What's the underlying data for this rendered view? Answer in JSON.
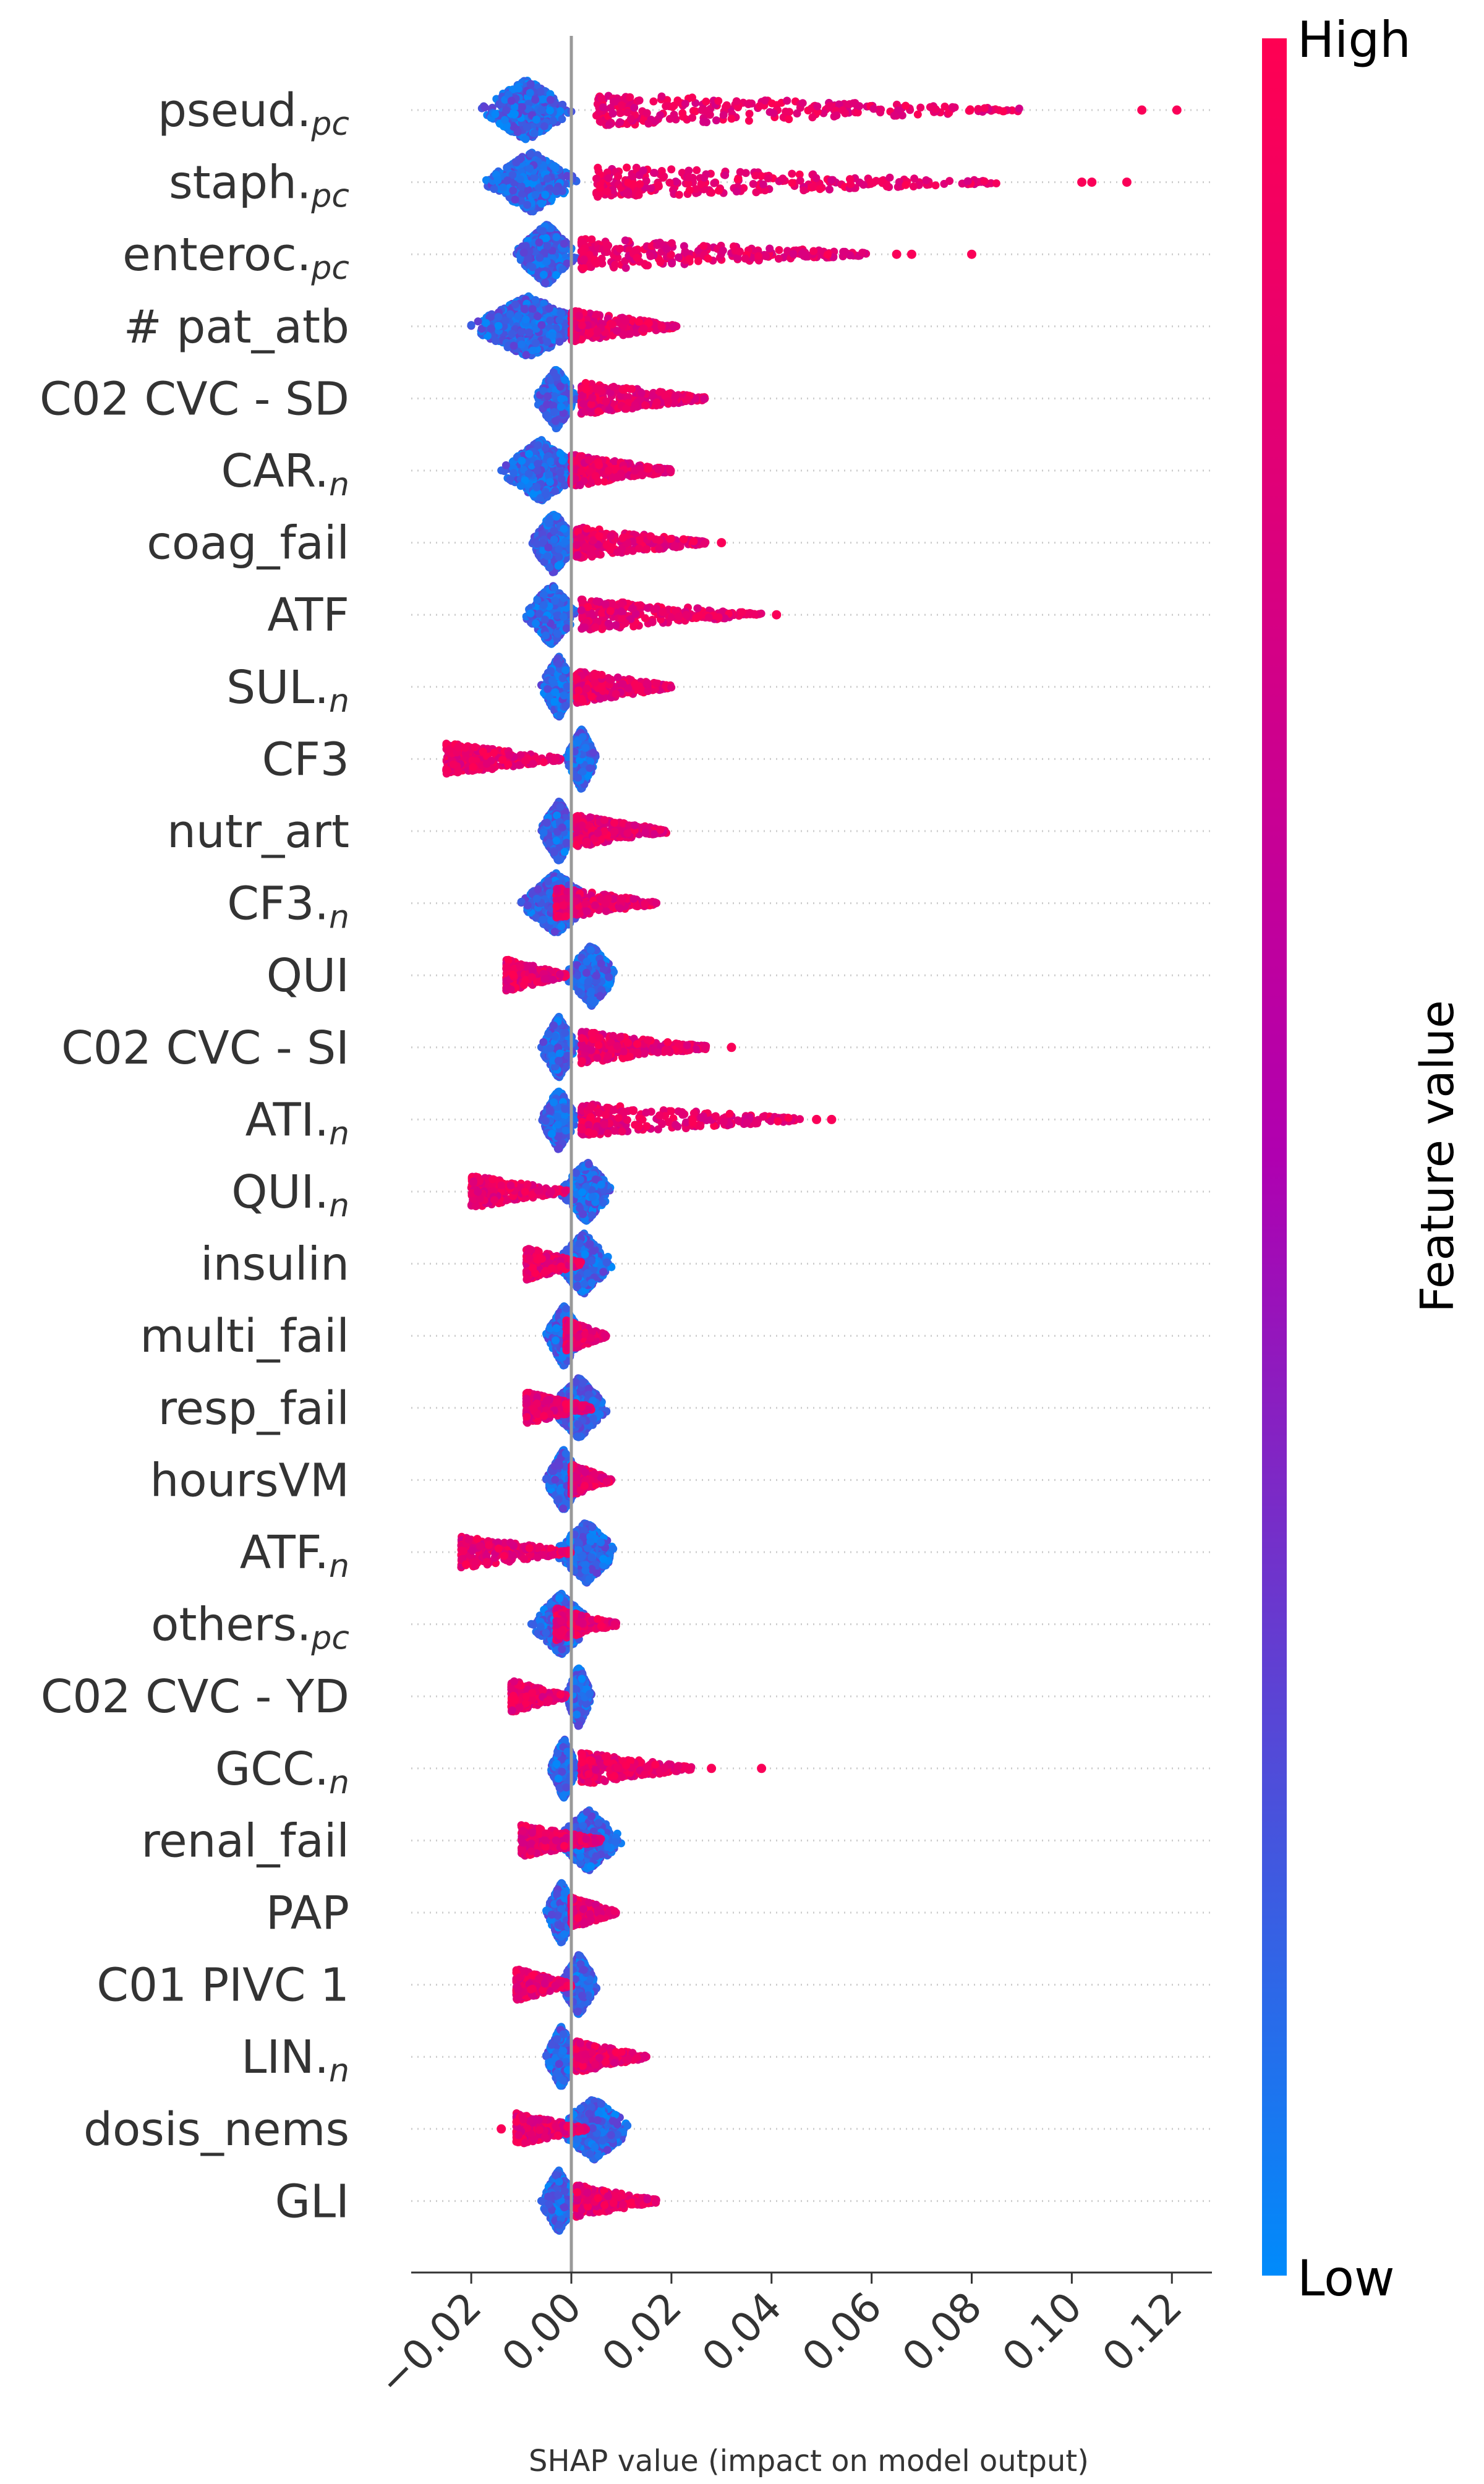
{
  "chart_data": {
    "type": "scatter",
    "subtype": "shap-beeswarm",
    "xlabel": "SHAP value (impact on model output)",
    "xlim": [
      -0.032,
      0.128
    ],
    "xticks": [
      -0.02,
      0.0,
      0.02,
      0.04,
      0.06,
      0.08,
      0.1,
      0.12
    ],
    "xtick_labels": [
      "−0.02",
      "0.00",
      "0.02",
      "0.04",
      "0.06",
      "0.08",
      "0.10",
      "0.12"
    ],
    "zero_line": 0.0,
    "grid": false,
    "colorbar": {
      "title": "Feature value",
      "high_label": "High",
      "low_label": "Low",
      "high_color": "#ff0052",
      "mid_color": "#b000b0",
      "low_color": "#008bfb"
    },
    "features": [
      {
        "name": "pseud.",
        "sub": "pc",
        "min": -0.018,
        "max": 0.121,
        "low_min": -0.018,
        "low_max": 0.0,
        "high_start": 0.005,
        "high_dense_end": 0.09,
        "width": 0.006,
        "outliers": [
          0.114,
          0.121
        ]
      },
      {
        "name": "staph.",
        "sub": "pc",
        "min": -0.017,
        "max": 0.111,
        "low_min": -0.017,
        "low_max": 0.001,
        "high_start": 0.005,
        "high_dense_end": 0.085,
        "width": 0.006,
        "outliers": [
          0.102,
          0.104,
          0.111
        ]
      },
      {
        "name": "enteroc.",
        "sub": "pc",
        "min": -0.011,
        "max": 0.08,
        "low_min": -0.011,
        "low_max": 0.001,
        "high_start": 0.002,
        "high_dense_end": 0.06,
        "width": 0.004,
        "outliers": [
          0.065,
          0.068,
          0.08
        ]
      },
      {
        "name": "# pat_atb",
        "sub": "",
        "min": -0.02,
        "max": 0.021,
        "low_min": -0.02,
        "low_max": 0.003,
        "high_start": 0.0,
        "high_dense_end": 0.021,
        "width": 0.007,
        "outliers": []
      },
      {
        "name": "C02 CVC - SD",
        "sub": "",
        "min": -0.007,
        "max": 0.027,
        "low_min": -0.007,
        "low_max": 0.001,
        "high_start": 0.002,
        "high_dense_end": 0.027,
        "width": 0.004,
        "outliers": []
      },
      {
        "name": "CAR.",
        "sub": "n",
        "min": -0.014,
        "max": 0.02,
        "low_min": -0.014,
        "low_max": 0.002,
        "high_start": 0.0,
        "high_dense_end": 0.02,
        "width": 0.006,
        "outliers": []
      },
      {
        "name": "coag_fail",
        "sub": "",
        "min": -0.008,
        "max": 0.03,
        "low_min": -0.008,
        "low_max": 0.001,
        "high_start": 0.001,
        "high_dense_end": 0.027,
        "width": 0.004,
        "outliers": [
          0.03
        ]
      },
      {
        "name": "ATF",
        "sub": "",
        "min": -0.009,
        "max": 0.041,
        "low_min": -0.009,
        "low_max": 0.001,
        "high_start": 0.002,
        "high_dense_end": 0.038,
        "width": 0.004,
        "outliers": [
          0.041
        ]
      },
      {
        "name": "SUL.",
        "sub": "n",
        "min": -0.006,
        "max": 0.02,
        "low_min": -0.006,
        "low_max": 0.001,
        "high_start": 0.001,
        "high_dense_end": 0.02,
        "width": 0.004,
        "outliers": []
      },
      {
        "name": "CF3",
        "sub": "",
        "min": -0.025,
        "max": 0.005,
        "low_min": -0.001,
        "low_max": 0.005,
        "high_start": -0.025,
        "high_dense_end": -0.002,
        "width": 0.003,
        "outliers": []
      },
      {
        "name": "nutr_art",
        "sub": "",
        "min": -0.006,
        "max": 0.019,
        "low_min": -0.006,
        "low_max": 0.001,
        "high_start": 0.001,
        "high_dense_end": 0.019,
        "width": 0.003,
        "outliers": []
      },
      {
        "name": "CF3.",
        "sub": "n",
        "min": -0.01,
        "max": 0.017,
        "low_min": -0.01,
        "low_max": 0.004,
        "high_start": -0.003,
        "high_dense_end": 0.017,
        "width": 0.005,
        "outliers": []
      },
      {
        "name": "QUI",
        "sub": "",
        "min": -0.013,
        "max": 0.009,
        "low_min": -0.001,
        "low_max": 0.009,
        "high_start": -0.013,
        "high_dense_end": -0.001,
        "width": 0.004,
        "outliers": []
      },
      {
        "name": "C02 CVC - SI",
        "sub": "",
        "min": -0.006,
        "max": 0.032,
        "low_min": -0.006,
        "low_max": 0.001,
        "high_start": 0.002,
        "high_dense_end": 0.027,
        "width": 0.003,
        "outliers": [
          0.032
        ]
      },
      {
        "name": "ATI.",
        "sub": "n",
        "min": -0.006,
        "max": 0.052,
        "low_min": -0.006,
        "low_max": 0.001,
        "high_start": 0.002,
        "high_dense_end": 0.046,
        "width": 0.004,
        "outliers": [
          0.049,
          0.052
        ]
      },
      {
        "name": "QUI.",
        "sub": "n",
        "min": -0.02,
        "max": 0.008,
        "low_min": -0.002,
        "low_max": 0.008,
        "high_start": -0.02,
        "high_dense_end": -0.001,
        "width": 0.004,
        "outliers": []
      },
      {
        "name": "insulin",
        "sub": "",
        "min": -0.009,
        "max": 0.008,
        "low_min": -0.003,
        "low_max": 0.008,
        "high_start": -0.009,
        "high_dense_end": 0.002,
        "width": 0.005,
        "outliers": []
      },
      {
        "name": "multi_fail",
        "sub": "",
        "min": -0.005,
        "max": 0.007,
        "low_min": -0.005,
        "low_max": 0.002,
        "high_start": -0.001,
        "high_dense_end": 0.007,
        "width": 0.005,
        "outliers": []
      },
      {
        "name": "resp_fail",
        "sub": "",
        "min": -0.009,
        "max": 0.007,
        "low_min": -0.004,
        "low_max": 0.007,
        "high_start": -0.009,
        "high_dense_end": 0.004,
        "width": 0.005,
        "outliers": []
      },
      {
        "name": "hoursVM",
        "sub": "",
        "min": -0.005,
        "max": 0.008,
        "low_min": -0.005,
        "low_max": 0.002,
        "high_start": 0.0,
        "high_dense_end": 0.008,
        "width": 0.004,
        "outliers": []
      },
      {
        "name": "ATF.",
        "sub": "n",
        "min": -0.022,
        "max": 0.009,
        "low_min": -0.003,
        "low_max": 0.009,
        "high_start": -0.022,
        "high_dense_end": 0.0,
        "width": 0.004,
        "outliers": []
      },
      {
        "name": "others.",
        "sub": "pc",
        "min": -0.008,
        "max": 0.009,
        "low_min": -0.008,
        "low_max": 0.004,
        "high_start": -0.003,
        "high_dense_end": 0.009,
        "width": 0.004,
        "outliers": []
      },
      {
        "name": "C02 CVC - YD",
        "sub": "",
        "min": -0.012,
        "max": 0.004,
        "low_min": -0.001,
        "low_max": 0.004,
        "high_start": -0.012,
        "high_dense_end": -0.001,
        "width": 0.003,
        "outliers": []
      },
      {
        "name": "GCC.",
        "sub": "n",
        "min": -0.004,
        "max": 0.038,
        "low_min": -0.004,
        "low_max": 0.001,
        "high_start": 0.002,
        "high_dense_end": 0.024,
        "width": 0.003,
        "outliers": [
          0.028,
          0.038
        ]
      },
      {
        "name": "renal_fail",
        "sub": "",
        "min": -0.01,
        "max": 0.01,
        "low_min": -0.003,
        "low_max": 0.01,
        "high_start": -0.01,
        "high_dense_end": 0.006,
        "width": 0.004,
        "outliers": []
      },
      {
        "name": "PAP",
        "sub": "",
        "min": -0.005,
        "max": 0.009,
        "low_min": -0.005,
        "low_max": 0.001,
        "high_start": 0.0,
        "high_dense_end": 0.009,
        "width": 0.003,
        "outliers": []
      },
      {
        "name": "C01 PIVC 1",
        "sub": "",
        "min": -0.011,
        "max": 0.005,
        "low_min": -0.002,
        "low_max": 0.005,
        "high_start": -0.011,
        "high_dense_end": 0.0,
        "width": 0.004,
        "outliers": []
      },
      {
        "name": "LIN.",
        "sub": "n",
        "min": -0.005,
        "max": 0.015,
        "low_min": -0.005,
        "low_max": 0.001,
        "high_start": 0.001,
        "high_dense_end": 0.015,
        "width": 0.003,
        "outliers": []
      },
      {
        "name": "dosis_nems",
        "sub": "",
        "min": -0.014,
        "max": 0.012,
        "low_min": -0.003,
        "low_max": 0.012,
        "high_start": -0.011,
        "high_dense_end": 0.003,
        "width": 0.004,
        "outliers": [
          -0.014
        ]
      },
      {
        "name": "GLI",
        "sub": "",
        "min": -0.006,
        "max": 0.017,
        "low_min": -0.006,
        "low_max": 0.001,
        "high_start": 0.001,
        "high_dense_end": 0.017,
        "width": 0.003,
        "outliers": []
      }
    ]
  }
}
